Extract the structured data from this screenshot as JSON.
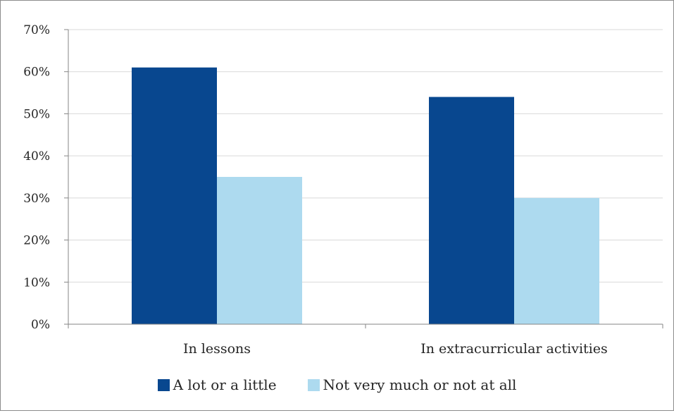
{
  "chart_data": {
    "type": "bar",
    "categories": [
      "In lessons",
      "In extracurricular activities"
    ],
    "series": [
      {
        "name": "A lot or a little",
        "values": [
          61,
          54
        ],
        "color": "#08478f"
      },
      {
        "name": "Not very much or not at all",
        "values": [
          35,
          30
        ],
        "color": "#addaef"
      }
    ],
    "ylim": [
      0,
      70
    ],
    "yticks": [
      0,
      10,
      20,
      30,
      40,
      50,
      60,
      70
    ],
    "ytick_labels": [
      "0%",
      "10%",
      "20%",
      "30%",
      "40%",
      "50%",
      "60%",
      "70%"
    ],
    "grid": true,
    "legend_position": "bottom"
  }
}
